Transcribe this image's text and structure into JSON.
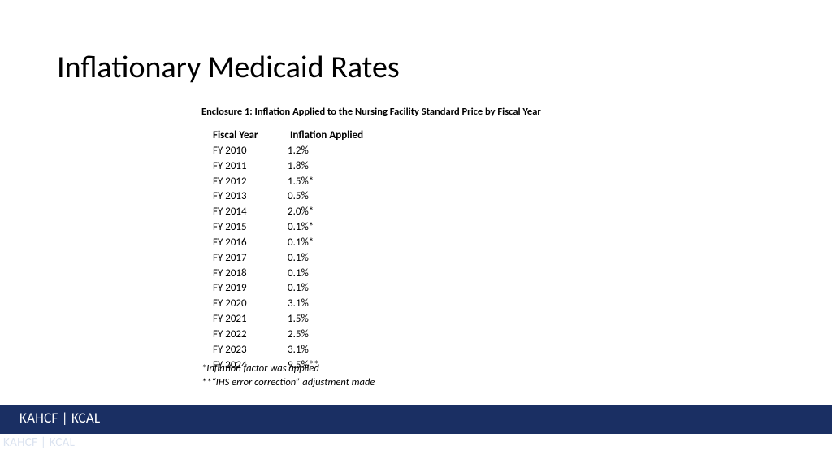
{
  "title": "Inflationary Medicaid Rates",
  "subtitle": "Enclosure 1: Inflation Applied to the Nursing Facility Standard Price by Fiscal Year",
  "table": {
    "headers": {
      "col1": "Fiscal Year",
      "col2": "Inflation  Applied"
    },
    "rows": [
      {
        "year": "FY 2010",
        "rate": "1.2%"
      },
      {
        "year": "FY 2011",
        "rate": "1.8%"
      },
      {
        "year": "FY 2012",
        "rate": "1.5%*"
      },
      {
        "year": "FY 2013",
        "rate": "0.5%"
      },
      {
        "year": "FY 2014",
        "rate": "2.0%*"
      },
      {
        "year": "FY 2015",
        "rate": "0.1%*"
      },
      {
        "year": "FY 2016",
        "rate": "0.1%*"
      },
      {
        "year": "FY 2017",
        "rate": "0.1%"
      },
      {
        "year": "FY 2018",
        "rate": "0.1%"
      },
      {
        "year": "FY 2019",
        "rate": "0.1%"
      },
      {
        "year": "FY 2020",
        "rate": "3.1%"
      },
      {
        "year": "FY 2021",
        "rate": "1.5%"
      },
      {
        "year": "FY 2022",
        "rate": "2.5%"
      },
      {
        "year": "FY 2023",
        "rate": "3.1%"
      },
      {
        "year": "FY 2024",
        "rate": "9.5%**"
      }
    ]
  },
  "footnotes": {
    "line1": "*Inflation factor was applied",
    "line2": "**“IHS error correction” adjustment made"
  },
  "band": "KAHCF | KCAL",
  "ghost": "KAHCF | KCAL",
  "colors": {
    "band_bg": "#1a2f63",
    "band_text": "#ffffff",
    "ghost_text": "#dbe3f0",
    "title_color": "#000000",
    "body_color": "#000000",
    "page_bg": "#ffffff"
  },
  "typography": {
    "title_fontsize": 38,
    "subtitle_fontsize": 12.5,
    "table_fontsize": 13,
    "footnote_fontsize": 12.5,
    "band_fontsize": 17
  }
}
